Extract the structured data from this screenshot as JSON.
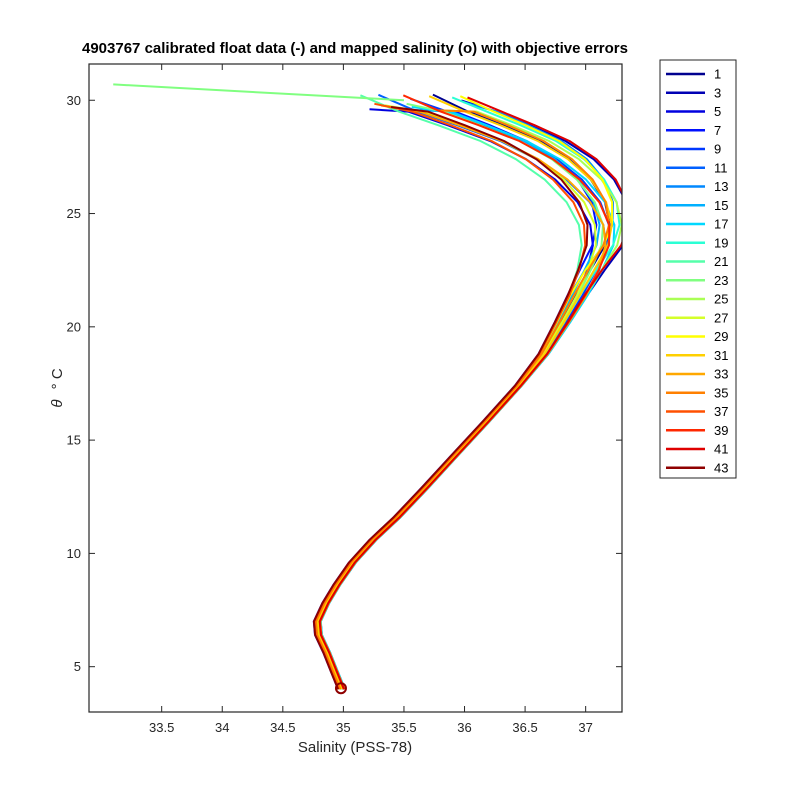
{
  "chart_data": {
    "type": "line",
    "title": "4903767 calibrated float data (-) and mapped salinity (o) with objective errors",
    "xlabel": "Salinity (PSS-78)",
    "ylabel_symbol": "θ",
    "ylabel_unit": "° C",
    "xlim": [
      32.9,
      37.3
    ],
    "ylim": [
      3.0,
      31.6
    ],
    "xticks": [
      33.5,
      34,
      34.5,
      35,
      35.5,
      36,
      36.5,
      37
    ],
    "xtick_labels": [
      "33.5",
      "34",
      "34.5",
      "35",
      "35.5",
      "36",
      "36.5",
      "37"
    ],
    "yticks": [
      5,
      10,
      15,
      20,
      25,
      30
    ],
    "ytick_labels": [
      "5",
      "10",
      "15",
      "20",
      "25",
      "30"
    ],
    "grid": false,
    "legend_position": "outside-right",
    "legend_entries": [
      "1",
      "3",
      "5",
      "7",
      "9",
      "11",
      "13",
      "15",
      "17",
      "19",
      "21",
      "23",
      "25",
      "27",
      "29",
      "31",
      "33",
      "35",
      "37",
      "39",
      "41",
      "43"
    ],
    "colormap": "jet",
    "legend_colors": [
      "#00008f",
      "#0000b4",
      "#0000df",
      "#0010ff",
      "#0038ff",
      "#0060ff",
      "#0088ff",
      "#00b0ff",
      "#00d8ff",
      "#2affd4",
      "#55ffaa",
      "#80ff80",
      "#aaff55",
      "#d4ff2a",
      "#ffff00",
      "#ffd000",
      "#ffa800",
      "#ff8000",
      "#ff5000",
      "#ff2800",
      "#df0000",
      "#8f0000"
    ],
    "base_profile": {
      "x": [
        34.99,
        34.93,
        34.87,
        34.8,
        34.79,
        34.86,
        34.95,
        35.08,
        35.25,
        35.45,
        35.68,
        35.92,
        36.18,
        36.45,
        36.66,
        36.82,
        36.95,
        37.06,
        37.16,
        37.18,
        37.12,
        36.98,
        36.78,
        36.52,
        36.2,
        35.9,
        35.6
      ],
      "y": [
        4.0,
        4.8,
        5.6,
        6.4,
        7.0,
        7.8,
        8.6,
        9.6,
        10.6,
        11.6,
        12.9,
        14.3,
        15.8,
        17.4,
        18.8,
        20.2,
        21.4,
        22.5,
        23.6,
        24.5,
        25.5,
        26.5,
        27.4,
        28.2,
        28.9,
        29.5,
        29.9
      ]
    },
    "mapped_salinity_marker": {
      "x": 34.98,
      "y": 4.05,
      "marker": "o"
    },
    "outlier_segment_cycle_23": {
      "x": [
        33.1,
        35.5
      ],
      "y": [
        30.7,
        30.0
      ]
    }
  }
}
